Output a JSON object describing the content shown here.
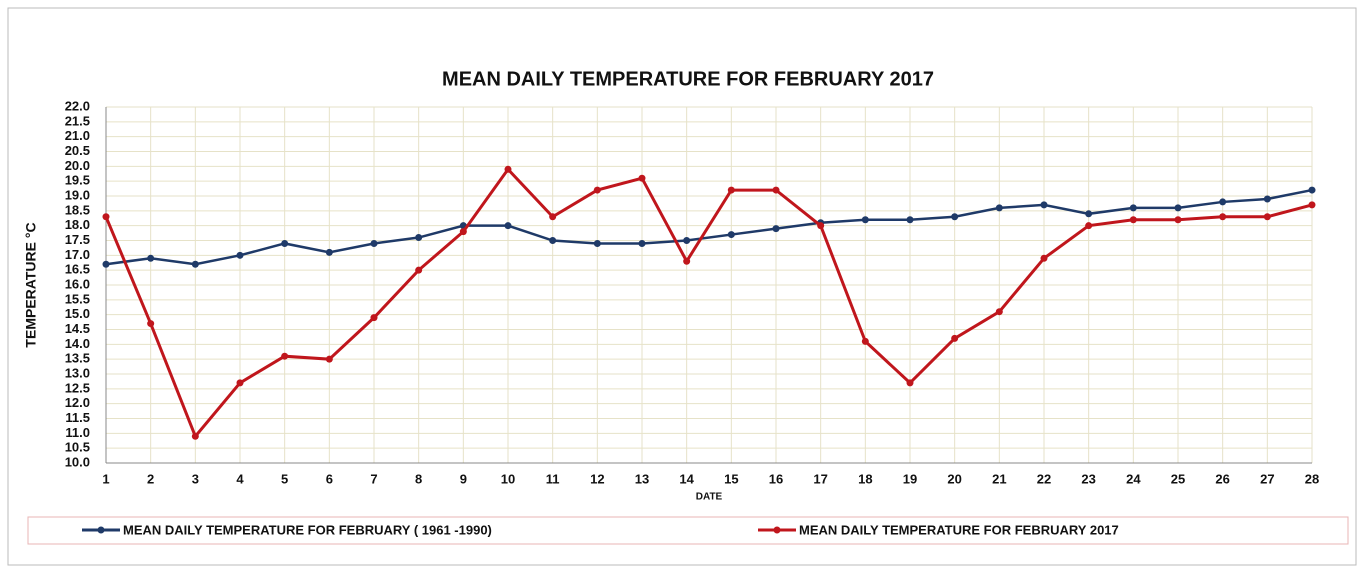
{
  "chart_data": {
    "type": "line",
    "title": "MEAN DAILY TEMPERATURE FOR FEBRUARY 2017",
    "x_label": "DATE",
    "y_label": "TEMPERATURE °C",
    "x": [
      1,
      2,
      3,
      4,
      5,
      6,
      7,
      8,
      9,
      10,
      11,
      12,
      13,
      14,
      15,
      16,
      17,
      18,
      19,
      20,
      21,
      22,
      23,
      24,
      25,
      26,
      27,
      28
    ],
    "xlim": [
      1,
      28
    ],
    "xticks": [
      1,
      2,
      3,
      4,
      5,
      6,
      7,
      8,
      9,
      10,
      11,
      12,
      13,
      14,
      15,
      16,
      17,
      18,
      19,
      20,
      21,
      22,
      23,
      24,
      25,
      26,
      27,
      28
    ],
    "ylim": [
      10,
      22
    ],
    "yticks": [
      {
        "value": 10,
        "label": "10.0"
      },
      {
        "value": 10.5,
        "label": "10.5"
      },
      {
        "value": 11,
        "label": "11.0"
      },
      {
        "value": 11.5,
        "label": "11.5"
      },
      {
        "value": 12,
        "label": "12.0"
      },
      {
        "value": 12.5,
        "label": "12.5"
      },
      {
        "value": 13,
        "label": "13.0"
      },
      {
        "value": 13.5,
        "label": "13.5"
      },
      {
        "value": 14,
        "label": "14.0"
      },
      {
        "value": 14.5,
        "label": "14.5"
      },
      {
        "value": 15,
        "label": "15.0"
      },
      {
        "value": 15.5,
        "label": "15.5"
      },
      {
        "value": 16,
        "label": "16.0"
      },
      {
        "value": 16.5,
        "label": "16.5"
      },
      {
        "value": 17,
        "label": "17.0"
      },
      {
        "value": 17.5,
        "label": "17.5"
      },
      {
        "value": 18,
        "label": "18.0"
      },
      {
        "value": 18.5,
        "label": "18.5"
      },
      {
        "value": 19,
        "label": "19.0"
      },
      {
        "value": 19.5,
        "label": "19.5"
      },
      {
        "value": 20,
        "label": "20.0"
      },
      {
        "value": 20.5,
        "label": "20.5"
      },
      {
        "value": 21,
        "label": "21.0"
      },
      {
        "value": 21.5,
        "label": "21.5"
      },
      {
        "value": 22,
        "label": "22.0"
      }
    ],
    "grid": true,
    "legend": "bottom",
    "series": [
      {
        "name": "MEAN DAILY TEMPERATURE FOR FEBRUARY ( 1961 -1990)",
        "color": "#1f3a68",
        "values": [
          16.7,
          16.9,
          16.7,
          17.0,
          17.4,
          17.1,
          17.4,
          17.6,
          18.0,
          18.0,
          17.5,
          17.4,
          17.4,
          17.5,
          17.7,
          17.9,
          18.1,
          18.2,
          18.2,
          18.3,
          18.6,
          18.7,
          18.4,
          18.6,
          18.6,
          18.8,
          18.9,
          19.2
        ]
      },
      {
        "name": "MEAN DAILY TEMPERATURE FOR FEBRUARY 2017",
        "color": "#c0161c",
        "values": [
          18.3,
          14.7,
          10.9,
          12.7,
          13.6,
          13.5,
          14.9,
          16.5,
          17.8,
          19.9,
          18.3,
          19.2,
          19.6,
          16.8,
          19.2,
          19.2,
          18.0,
          14.1,
          12.7,
          14.2,
          15.1,
          16.9,
          18.0,
          18.2,
          18.2,
          18.3,
          18.3,
          18.7
        ]
      }
    ]
  }
}
